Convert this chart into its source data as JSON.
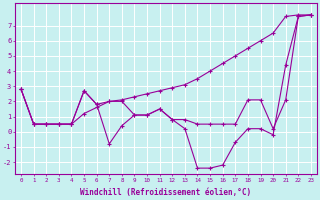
{
  "xlabel": "Windchill (Refroidissement éolien,°C)",
  "bg_color": "#c8f0f0",
  "grid_color": "#ffffff",
  "line_color": "#990099",
  "x": [
    0,
    1,
    2,
    3,
    4,
    5,
    6,
    7,
    8,
    9,
    10,
    11,
    12,
    13,
    14,
    15,
    16,
    17,
    18,
    19,
    20,
    21,
    22,
    23
  ],
  "line1": [
    2.8,
    0.5,
    0.5,
    0.5,
    0.5,
    2.7,
    1.8,
    2.0,
    2.1,
    2.3,
    2.5,
    2.7,
    2.9,
    3.1,
    3.5,
    4.0,
    4.5,
    5.0,
    5.5,
    6.0,
    6.5,
    7.6,
    7.7,
    7.7
  ],
  "line2": [
    2.8,
    0.5,
    0.5,
    0.5,
    0.5,
    2.7,
    1.8,
    -0.8,
    0.4,
    1.1,
    1.1,
    1.5,
    0.8,
    0.2,
    -2.4,
    -2.4,
    -2.2,
    -0.7,
    0.2,
    0.2,
    -0.2,
    4.4,
    7.6,
    7.7
  ],
  "line3": [
    2.8,
    0.5,
    0.5,
    0.5,
    0.5,
    1.2,
    1.6,
    2.0,
    2.0,
    1.1,
    1.1,
    1.5,
    0.8,
    0.8,
    0.5,
    0.5,
    0.5,
    0.5,
    2.1,
    2.1,
    0.2,
    2.1,
    7.6,
    7.7
  ],
  "ylim": [
    -2.8,
    8.5
  ],
  "yticks": [
    -2,
    -1,
    0,
    1,
    2,
    3,
    4,
    5,
    6,
    7
  ]
}
